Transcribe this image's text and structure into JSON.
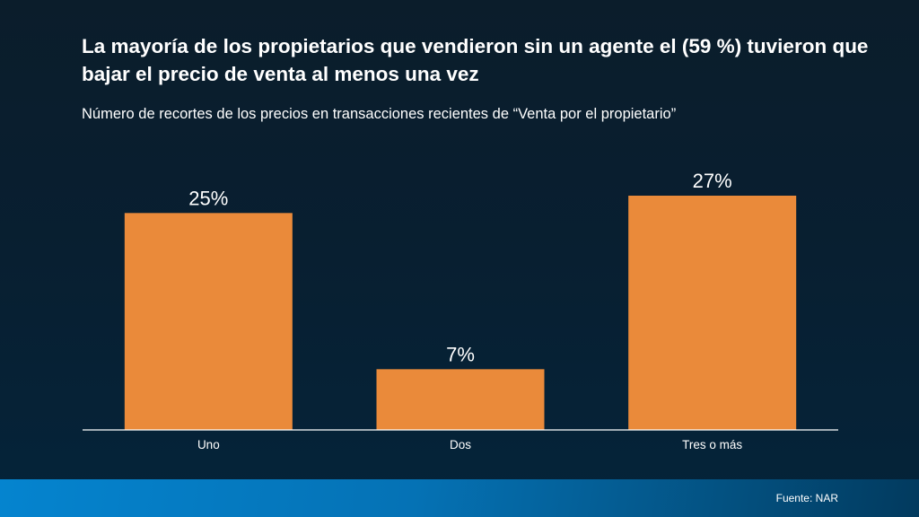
{
  "chart_data": {
    "type": "bar",
    "title": "La mayoría de los propietarios que vendieron sin un agente el (59 %) tuvieron que bajar el precio de venta al menos una vez",
    "subtitle": "Número de recortes de los precios en transacciones recientes de “Venta por el propietario”",
    "categories": [
      "Uno",
      "Dos",
      "Tres o más"
    ],
    "values": [
      25,
      7,
      27
    ],
    "value_labels": [
      "25%",
      "7%",
      "27%"
    ],
    "xlabel": "",
    "ylabel": "",
    "ylim": [
      0,
      30
    ],
    "grid": false,
    "bar_color": "#ea8a3a"
  },
  "footer": {
    "source": "Fuente: NAR"
  }
}
